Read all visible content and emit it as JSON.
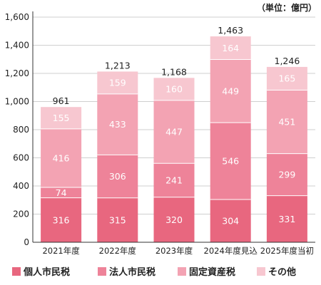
{
  "unit_label": "（単位：億円）",
  "chart_data": {
    "type": "bar",
    "stacked": true,
    "categories": [
      "2021年度",
      "2022年度",
      "2023年度",
      "2024年度見込",
      "2025年度当初"
    ],
    "series": [
      {
        "name": "個人市民税",
        "values": [
          316,
          315,
          320,
          304,
          331
        ],
        "color": "#e8677f"
      },
      {
        "name": "法人市民税",
        "values": [
          74,
          306,
          241,
          546,
          299
        ],
        "color": "#ee8399"
      },
      {
        "name": "固定資産税",
        "values": [
          416,
          433,
          447,
          449,
          451
        ],
        "color": "#f3a3b3"
      },
      {
        "name": "その他",
        "values": [
          155,
          159,
          160,
          164,
          165
        ],
        "color": "#f7c7d0"
      }
    ],
    "totals": [
      "961",
      "1,213",
      "1,168",
      "1,463",
      "1,246"
    ],
    "yticks": [
      0,
      200,
      400,
      600,
      800,
      1000,
      1200,
      1400,
      1600
    ],
    "ytick_labels": [
      "0",
      "200",
      "400",
      "600",
      "800",
      "1,000",
      "1,200",
      "1,400",
      "1,600"
    ],
    "ylim": [
      0,
      1600
    ],
    "grid": true,
    "legend_position": "bottom"
  }
}
